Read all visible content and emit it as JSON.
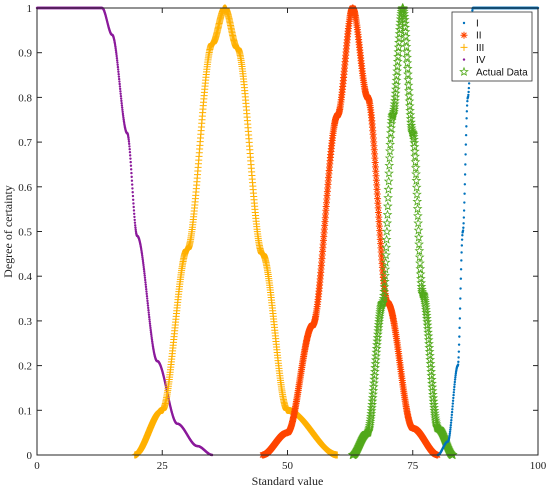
{
  "chart_data": {
    "type": "scatter",
    "xlabel": "Standard value",
    "ylabel": "Degree of certainty",
    "xlim": [
      0,
      100
    ],
    "ylim": [
      0,
      1
    ],
    "xticks": [
      0,
      25,
      50,
      75,
      100
    ],
    "yticks": [
      0,
      0.1,
      0.2,
      0.3,
      0.4,
      0.5,
      0.6,
      0.7,
      0.8,
      0.9,
      1
    ],
    "grid": false,
    "legend_position": "top-right",
    "series": [
      {
        "name": "I",
        "color": "#0072BD",
        "marker": "dot",
        "shape": "rising",
        "points": [
          [
            80,
            0.0
          ],
          [
            82,
            0.03
          ],
          [
            84,
            0.2
          ],
          [
            85,
            0.5
          ],
          [
            86,
            0.8
          ],
          [
            87,
            1.0
          ],
          [
            100,
            1.0
          ]
        ]
      },
      {
        "name": "II",
        "color": "#FF4500",
        "marker": "asterisk",
        "shape": "bell",
        "points": [
          [
            45,
            0.0
          ],
          [
            50,
            0.05
          ],
          [
            55,
            0.29
          ],
          [
            60,
            0.76
          ],
          [
            63,
            1.0
          ],
          [
            66,
            0.8
          ],
          [
            70,
            0.34
          ],
          [
            75,
            0.06
          ],
          [
            80,
            0.0
          ]
        ]
      },
      {
        "name": "III",
        "color": "#FFB000",
        "marker": "plus",
        "shape": "bell",
        "points": [
          [
            19.5,
            0.0
          ],
          [
            25,
            0.1
          ],
          [
            30,
            0.46
          ],
          [
            35,
            0.92
          ],
          [
            37.5,
            1.0
          ],
          [
            40,
            0.91
          ],
          [
            45,
            0.45
          ],
          [
            50,
            0.1
          ],
          [
            60,
            0.0
          ]
        ]
      },
      {
        "name": "IV",
        "color": "#8B1A9B",
        "marker": "dot",
        "shape": "falling",
        "points": [
          [
            0,
            1.0
          ],
          [
            13,
            1.0
          ],
          [
            15,
            0.94
          ],
          [
            18,
            0.72
          ],
          [
            20,
            0.49
          ],
          [
            24,
            0.21
          ],
          [
            28,
            0.07
          ],
          [
            32,
            0.02
          ],
          [
            35,
            0.0
          ]
        ]
      },
      {
        "name": "Actual Data",
        "color": "#52A91B",
        "marker": "pentagram",
        "shape": "bell",
        "points": [
          [
            63,
            0.0
          ],
          [
            66,
            0.05
          ],
          [
            69,
            0.34
          ],
          [
            71,
            0.76
          ],
          [
            73,
            1.0
          ],
          [
            75,
            0.72
          ],
          [
            77,
            0.36
          ],
          [
            80,
            0.06
          ],
          [
            83,
            0.0
          ]
        ]
      }
    ]
  }
}
